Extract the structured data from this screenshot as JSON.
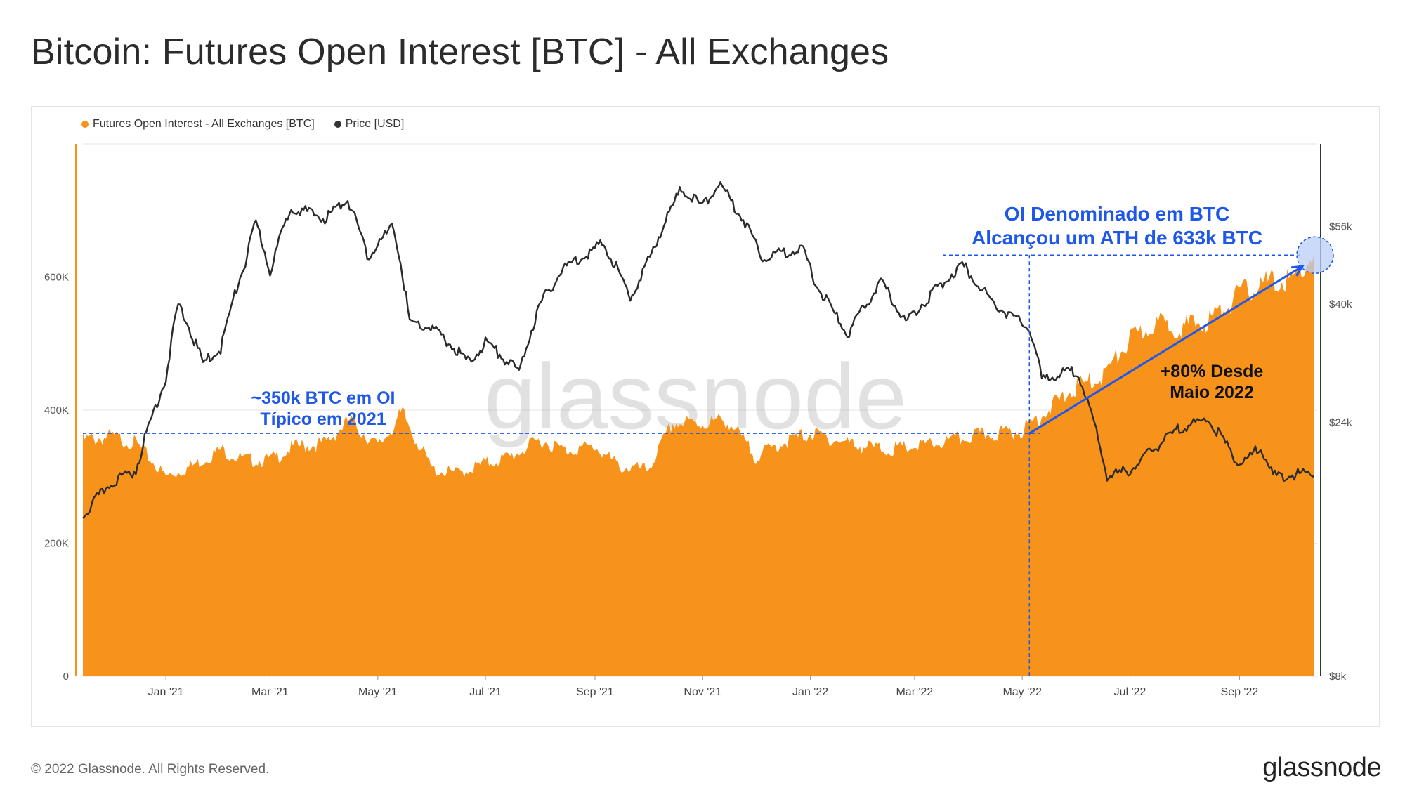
{
  "page": {
    "title": "Bitcoin: Futures Open Interest [BTC] - All Exchanges",
    "copyright": "© 2022 Glassnode. All Rights Reserved.",
    "logo": "glassnode",
    "watermark": "glassnode"
  },
  "legend": [
    {
      "label": "Futures Open Interest - All Exchanges [BTC]",
      "color": "#f7931a"
    },
    {
      "label": "Price [USD]",
      "color": "#333333"
    }
  ],
  "annotations": {
    "typical_2021_line1": "~350k BTC em OI",
    "typical_2021_line2": "Típico em 2021",
    "ath_line1": "OI Denominado em BTC",
    "ath_line2": "Alcançou um ATH de 633k BTC",
    "growth_line1": "+80% Desde",
    "growth_line2": "Maio 2022"
  },
  "chart_data": {
    "type": "area",
    "x_axis": {
      "tick_labels": [
        "Jan '21",
        "Mar '21",
        "May '21",
        "Jul '21",
        "Sep '21",
        "Nov '21",
        "Jan '22",
        "Mar '22",
        "May '22",
        "Jul '22",
        "Sep '22"
      ],
      "range": [
        "2020-11-15",
        "2022-10-15"
      ]
    },
    "y_left": {
      "tick_labels": [
        "0",
        "200K",
        "400K",
        "600K"
      ],
      "ticks": [
        0,
        200000,
        400000,
        600000
      ],
      "range": [
        0,
        800000
      ]
    },
    "y_right": {
      "scale": "log",
      "tick_labels": [
        "$8k",
        "$24k",
        "$40k",
        "$56k"
      ],
      "ticks": [
        8000,
        24000,
        40000,
        56000
      ],
      "range": [
        8000,
        80000
      ]
    },
    "grid": true,
    "legend_position": "top-left",
    "reference_level_btc": 365000,
    "ath_btc": 633000,
    "series": [
      {
        "name": "Futures Open Interest - All Exchanges [BTC]",
        "axis": "left",
        "color": "#f7931a",
        "points": [
          [
            "2020-11-15",
            355000
          ],
          [
            "2020-12-01",
            360000
          ],
          [
            "2020-12-15",
            350000
          ],
          [
            "2021-01-01",
            300000
          ],
          [
            "2021-01-15",
            315000
          ],
          [
            "2021-02-01",
            340000
          ],
          [
            "2021-02-15",
            325000
          ],
          [
            "2021-03-01",
            325000
          ],
          [
            "2021-03-15",
            345000
          ],
          [
            "2021-04-01",
            350000
          ],
          [
            "2021-04-15",
            385000
          ],
          [
            "2021-05-01",
            345000
          ],
          [
            "2021-05-15",
            395000
          ],
          [
            "2021-06-01",
            310000
          ],
          [
            "2021-06-15",
            305000
          ],
          [
            "2021-07-01",
            320000
          ],
          [
            "2021-07-15",
            330000
          ],
          [
            "2021-08-01",
            355000
          ],
          [
            "2021-08-15",
            340000
          ],
          [
            "2021-09-01",
            345000
          ],
          [
            "2021-09-15",
            315000
          ],
          [
            "2021-10-01",
            310000
          ],
          [
            "2021-10-15",
            380000
          ],
          [
            "2021-11-01",
            380000
          ],
          [
            "2021-11-15",
            385000
          ],
          [
            "2021-12-01",
            330000
          ],
          [
            "2021-12-15",
            350000
          ],
          [
            "2022-01-01",
            365000
          ],
          [
            "2022-01-15",
            355000
          ],
          [
            "2022-02-01",
            345000
          ],
          [
            "2022-02-15",
            340000
          ],
          [
            "2022-03-01",
            345000
          ],
          [
            "2022-03-15",
            350000
          ],
          [
            "2022-04-01",
            360000
          ],
          [
            "2022-04-15",
            365000
          ],
          [
            "2022-05-01",
            370000
          ],
          [
            "2022-05-15",
            400000
          ],
          [
            "2022-06-01",
            435000
          ],
          [
            "2022-06-15",
            450000
          ],
          [
            "2022-07-01",
            505000
          ],
          [
            "2022-07-15",
            530000
          ],
          [
            "2022-08-01",
            525000
          ],
          [
            "2022-08-15",
            535000
          ],
          [
            "2022-09-01",
            575000
          ],
          [
            "2022-09-15",
            590000
          ],
          [
            "2022-10-01",
            595000
          ],
          [
            "2022-10-13",
            633000
          ]
        ]
      },
      {
        "name": "Price [USD]",
        "axis": "right",
        "color": "#333333",
        "points": [
          [
            "2020-11-15",
            16000
          ],
          [
            "2020-12-01",
            18500
          ],
          [
            "2020-12-15",
            19500
          ],
          [
            "2021-01-01",
            29000
          ],
          [
            "2021-01-08",
            40000
          ],
          [
            "2021-01-22",
            31000
          ],
          [
            "2021-02-01",
            33000
          ],
          [
            "2021-02-15",
            48000
          ],
          [
            "2021-02-21",
            57000
          ],
          [
            "2021-03-01",
            46000
          ],
          [
            "2021-03-13",
            61000
          ],
          [
            "2021-04-01",
            58000
          ],
          [
            "2021-04-14",
            63000
          ],
          [
            "2021-04-25",
            49000
          ],
          [
            "2021-05-10",
            56000
          ],
          [
            "2021-05-19",
            37000
          ],
          [
            "2021-06-01",
            36000
          ],
          [
            "2021-06-22",
            31000
          ],
          [
            "2021-07-01",
            34000
          ],
          [
            "2021-07-20",
            29800
          ],
          [
            "2021-08-01",
            40000
          ],
          [
            "2021-08-15",
            47000
          ],
          [
            "2021-09-06",
            52000
          ],
          [
            "2021-09-21",
            41000
          ],
          [
            "2021-10-01",
            48000
          ],
          [
            "2021-10-20",
            66000
          ],
          [
            "2021-11-01",
            61000
          ],
          [
            "2021-11-10",
            67500
          ],
          [
            "2021-11-25",
            57000
          ],
          [
            "2021-12-05",
            49000
          ],
          [
            "2021-12-27",
            51000
          ],
          [
            "2022-01-05",
            43000
          ],
          [
            "2022-01-22",
            35000
          ],
          [
            "2022-02-10",
            44000
          ],
          [
            "2022-02-24",
            37000
          ],
          [
            "2022-03-28",
            47500
          ],
          [
            "2022-04-15",
            40000
          ],
          [
            "2022-05-05",
            36000
          ],
          [
            "2022-05-12",
            29000
          ],
          [
            "2022-06-01",
            30000
          ],
          [
            "2022-06-18",
            19000
          ],
          [
            "2022-07-01",
            19500
          ],
          [
            "2022-07-30",
            23500
          ],
          [
            "2022-08-14",
            24300
          ],
          [
            "2022-09-01",
            20000
          ],
          [
            "2022-09-13",
            21500
          ],
          [
            "2022-09-20",
            19000
          ],
          [
            "2022-10-13",
            19300
          ]
        ]
      }
    ]
  }
}
